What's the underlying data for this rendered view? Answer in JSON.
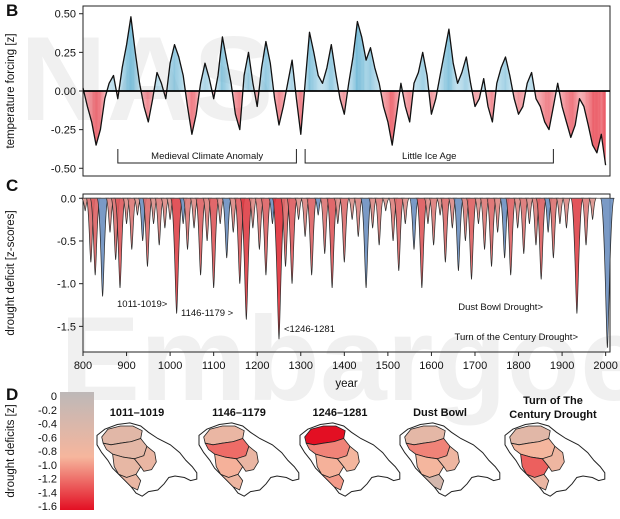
{
  "chart_data": [
    {
      "panel": "B",
      "type": "area",
      "ylabel": "temperature forcing [z]",
      "x_range": [
        800,
        2010
      ],
      "ylim": [
        -0.55,
        0.55
      ],
      "yticks": [
        "0.50",
        "0.25",
        "0.00",
        "-0.25",
        "-0.50"
      ],
      "positive_color": "#6fb8d6",
      "negative_color": "#e8434f",
      "series": {
        "x": [
          800,
          810,
          820,
          830,
          840,
          850,
          860,
          870,
          880,
          890,
          900,
          910,
          920,
          930,
          940,
          950,
          960,
          970,
          980,
          990,
          1000,
          1010,
          1020,
          1030,
          1040,
          1050,
          1060,
          1070,
          1080,
          1090,
          1100,
          1110,
          1120,
          1130,
          1140,
          1150,
          1160,
          1170,
          1180,
          1190,
          1200,
          1210,
          1220,
          1230,
          1240,
          1250,
          1260,
          1270,
          1280,
          1290,
          1300,
          1310,
          1320,
          1330,
          1340,
          1350,
          1360,
          1370,
          1380,
          1390,
          1400,
          1410,
          1420,
          1430,
          1440,
          1450,
          1460,
          1470,
          1480,
          1490,
          1500,
          1510,
          1520,
          1530,
          1540,
          1550,
          1560,
          1570,
          1580,
          1590,
          1600,
          1610,
          1620,
          1630,
          1640,
          1650,
          1660,
          1670,
          1680,
          1690,
          1700,
          1710,
          1720,
          1730,
          1740,
          1750,
          1760,
          1770,
          1780,
          1790,
          1800,
          1810,
          1820,
          1830,
          1840,
          1850,
          1860,
          1870,
          1880,
          1890,
          1900,
          1910,
          1920,
          1930,
          1940,
          1950,
          1960,
          1970,
          1980,
          1990,
          2000
        ],
        "values": [
          0.02,
          -0.1,
          -0.2,
          -0.35,
          -0.25,
          -0.05,
          0.05,
          0.1,
          -0.05,
          0.15,
          0.3,
          0.48,
          0.25,
          0.05,
          -0.1,
          -0.2,
          -0.05,
          0.12,
          0.05,
          -0.05,
          0.18,
          0.3,
          0.22,
          0.1,
          -0.1,
          -0.28,
          -0.15,
          0.05,
          0.18,
          0.08,
          -0.05,
          0.1,
          0.35,
          0.2,
          0.05,
          -0.15,
          -0.25,
          0.1,
          0.25,
          0.05,
          -0.1,
          0.15,
          0.32,
          0.18,
          -0.05,
          -0.22,
          -0.1,
          0.05,
          0.2,
          -0.05,
          -0.28,
          0.05,
          0.38,
          0.25,
          0.1,
          0.05,
          0.15,
          0.3,
          0.12,
          -0.05,
          -0.15,
          0.05,
          0.22,
          0.45,
          0.35,
          0.2,
          0.28,
          0.15,
          0.05,
          -0.1,
          -0.2,
          -0.35,
          -0.15,
          0.05,
          -0.1,
          -0.2,
          0.05,
          0.12,
          0.25,
          0.1,
          -0.15,
          -0.05,
          0.1,
          0.25,
          0.4,
          0.18,
          0.05,
          0.12,
          0.22,
          0.05,
          -0.1,
          -0.05,
          0.08,
          -0.1,
          -0.2,
          0.05,
          0.15,
          0.22,
          0.1,
          -0.05,
          -0.15,
          -0.1,
          0.05,
          0.12,
          -0.05,
          -0.1,
          -0.2,
          -0.25,
          -0.1,
          0.05,
          -0.1,
          -0.2,
          -0.3,
          -0.22,
          -0.05,
          -0.1,
          -0.22,
          -0.35,
          -0.4,
          -0.28,
          -0.48
        ]
      },
      "periods": [
        {
          "label": "Medieval Climate Anomaly",
          "start": 880,
          "end": 1290
        },
        {
          "label": "Little Ice Age",
          "start": 1310,
          "end": 1880
        }
      ]
    },
    {
      "panel": "C",
      "type": "area",
      "ylabel": "drought deficit [z-scores]",
      "xlabel": "year",
      "x_range": [
        800,
        2010
      ],
      "ylim": [
        -1.8,
        0.05
      ],
      "yticks": [
        "0.0",
        "-0.5",
        "-1.0",
        "-1.5"
      ],
      "xticks": [
        "800",
        "900",
        "1000",
        "1100",
        "1200",
        "1300",
        "1400",
        "1500",
        "1600",
        "1700",
        "1800",
        "1900",
        "2000"
      ],
      "droughts": [
        {
          "year": 805,
          "value": -0.15
        },
        {
          "year": 818,
          "value": -0.75
        },
        {
          "year": 828,
          "value": -0.9
        },
        {
          "year": 845,
          "value": -1.15
        },
        {
          "year": 862,
          "value": -0.4
        },
        {
          "year": 875,
          "value": -0.72
        },
        {
          "year": 885,
          "value": -1.05
        },
        {
          "year": 900,
          "value": -0.3
        },
        {
          "year": 912,
          "value": -0.6
        },
        {
          "year": 925,
          "value": -0.2
        },
        {
          "year": 937,
          "value": -0.5
        },
        {
          "year": 948,
          "value": -0.8
        },
        {
          "year": 962,
          "value": -0.3
        },
        {
          "year": 975,
          "value": -0.55
        },
        {
          "year": 988,
          "value": -0.35
        },
        {
          "year": 1000,
          "value": -0.25
        },
        {
          "year": 1015,
          "value": -1.35
        },
        {
          "year": 1030,
          "value": -0.3
        },
        {
          "year": 1040,
          "value": -0.6
        },
        {
          "year": 1055,
          "value": -0.35
        },
        {
          "year": 1070,
          "value": -0.9
        },
        {
          "year": 1085,
          "value": -0.5
        },
        {
          "year": 1100,
          "value": -1.05
        },
        {
          "year": 1115,
          "value": -0.3
        },
        {
          "year": 1130,
          "value": -0.7
        },
        {
          "year": 1145,
          "value": -0.4
        },
        {
          "year": 1160,
          "value": -1.0
        },
        {
          "year": 1175,
          "value": -1.42
        },
        {
          "year": 1190,
          "value": -0.35
        },
        {
          "year": 1205,
          "value": -0.6
        },
        {
          "year": 1220,
          "value": -0.9
        },
        {
          "year": 1235,
          "value": -0.3
        },
        {
          "year": 1250,
          "value": -1.65
        },
        {
          "year": 1265,
          "value": -0.8
        },
        {
          "year": 1280,
          "value": -1.0
        },
        {
          "year": 1295,
          "value": -0.25
        },
        {
          "year": 1310,
          "value": -0.45
        },
        {
          "year": 1325,
          "value": -0.9
        },
        {
          "year": 1340,
          "value": -0.2
        },
        {
          "year": 1355,
          "value": -0.65
        },
        {
          "year": 1372,
          "value": -1.05
        },
        {
          "year": 1385,
          "value": -0.3
        },
        {
          "year": 1400,
          "value": -0.75
        },
        {
          "year": 1418,
          "value": -0.25
        },
        {
          "year": 1432,
          "value": -0.45
        },
        {
          "year": 1450,
          "value": -1.05
        },
        {
          "year": 1465,
          "value": -0.35
        },
        {
          "year": 1480,
          "value": -0.55
        },
        {
          "year": 1495,
          "value": -0.15
        },
        {
          "year": 1512,
          "value": -0.5
        },
        {
          "year": 1525,
          "value": -0.85
        },
        {
          "year": 1540,
          "value": -0.3
        },
        {
          "year": 1560,
          "value": -0.6
        },
        {
          "year": 1578,
          "value": -1.05
        },
        {
          "year": 1592,
          "value": -0.3
        },
        {
          "year": 1605,
          "value": -0.55
        },
        {
          "year": 1620,
          "value": -0.2
        },
        {
          "year": 1632,
          "value": -0.75
        },
        {
          "year": 1648,
          "value": -0.35
        },
        {
          "year": 1662,
          "value": -0.85
        },
        {
          "year": 1678,
          "value": -0.5
        },
        {
          "year": 1692,
          "value": -0.95
        },
        {
          "year": 1708,
          "value": -0.3
        },
        {
          "year": 1722,
          "value": -0.6
        },
        {
          "year": 1738,
          "value": -0.8
        },
        {
          "year": 1752,
          "value": -0.4
        },
        {
          "year": 1768,
          "value": -0.7
        },
        {
          "year": 1782,
          "value": -0.9
        },
        {
          "year": 1798,
          "value": -0.35
        },
        {
          "year": 1812,
          "value": -0.65
        },
        {
          "year": 1825,
          "value": -0.3
        },
        {
          "year": 1840,
          "value": -0.55
        },
        {
          "year": 1852,
          "value": -0.95
        },
        {
          "year": 1868,
          "value": -0.4
        },
        {
          "year": 1880,
          "value": -0.7
        },
        {
          "year": 1895,
          "value": -0.3
        },
        {
          "year": 1910,
          "value": -0.35
        },
        {
          "year": 1934,
          "value": -1.35
        },
        {
          "year": 1955,
          "value": -0.55
        },
        {
          "year": 1970,
          "value": -0.25
        },
        {
          "year": 2004,
          "value": -1.75
        }
      ],
      "annotations": [
        {
          "text": "1011-1019>",
          "year": 1015
        },
        {
          "text": "1146-1179 >",
          "year": 1175
        },
        {
          "text": "<1246-1281",
          "year": 1250
        },
        {
          "text": "Dust Bowl Drought>",
          "year": 1934
        },
        {
          "text": "Turn of the Century Drought>",
          "year": 2004
        }
      ]
    },
    {
      "panel": "D",
      "type": "heatmap",
      "colorbar_label": "drought deficits [z]",
      "colorbar_ticks": [
        "0",
        "-0.2",
        "-0.4",
        "-0.6",
        "-0.8",
        "-1.0",
        "-1.2",
        "-1.4",
        "-1.6"
      ],
      "colorbar_range": [
        0,
        -1.6
      ],
      "color_low": "#bdb8b8",
      "color_high": "#e30f23",
      "maps": [
        {
          "title": "1011–1019",
          "regions": [
            -0.55,
            -0.6,
            -0.65,
            -0.7,
            -0.7
          ]
        },
        {
          "title": "1146–1179",
          "regions": [
            -0.7,
            -1.2,
            -0.9,
            -0.75,
            -0.7
          ]
        },
        {
          "title": "1246–1281",
          "regions": [
            -1.6,
            -1.1,
            -0.9,
            -1.0,
            -0.85
          ]
        },
        {
          "title": "Dust Bowl",
          "regions": [
            -0.6,
            -1.1,
            -0.85,
            -0.35,
            -0.75
          ]
        },
        {
          "title": "Turn of The",
          "title2": "Century Drought",
          "regions": [
            -0.55,
            -0.85,
            -1.25,
            -0.7,
            -0.75
          ]
        }
      ]
    }
  ],
  "labels": {
    "panel_b": "B",
    "panel_c": "C",
    "panel_d": "D"
  }
}
